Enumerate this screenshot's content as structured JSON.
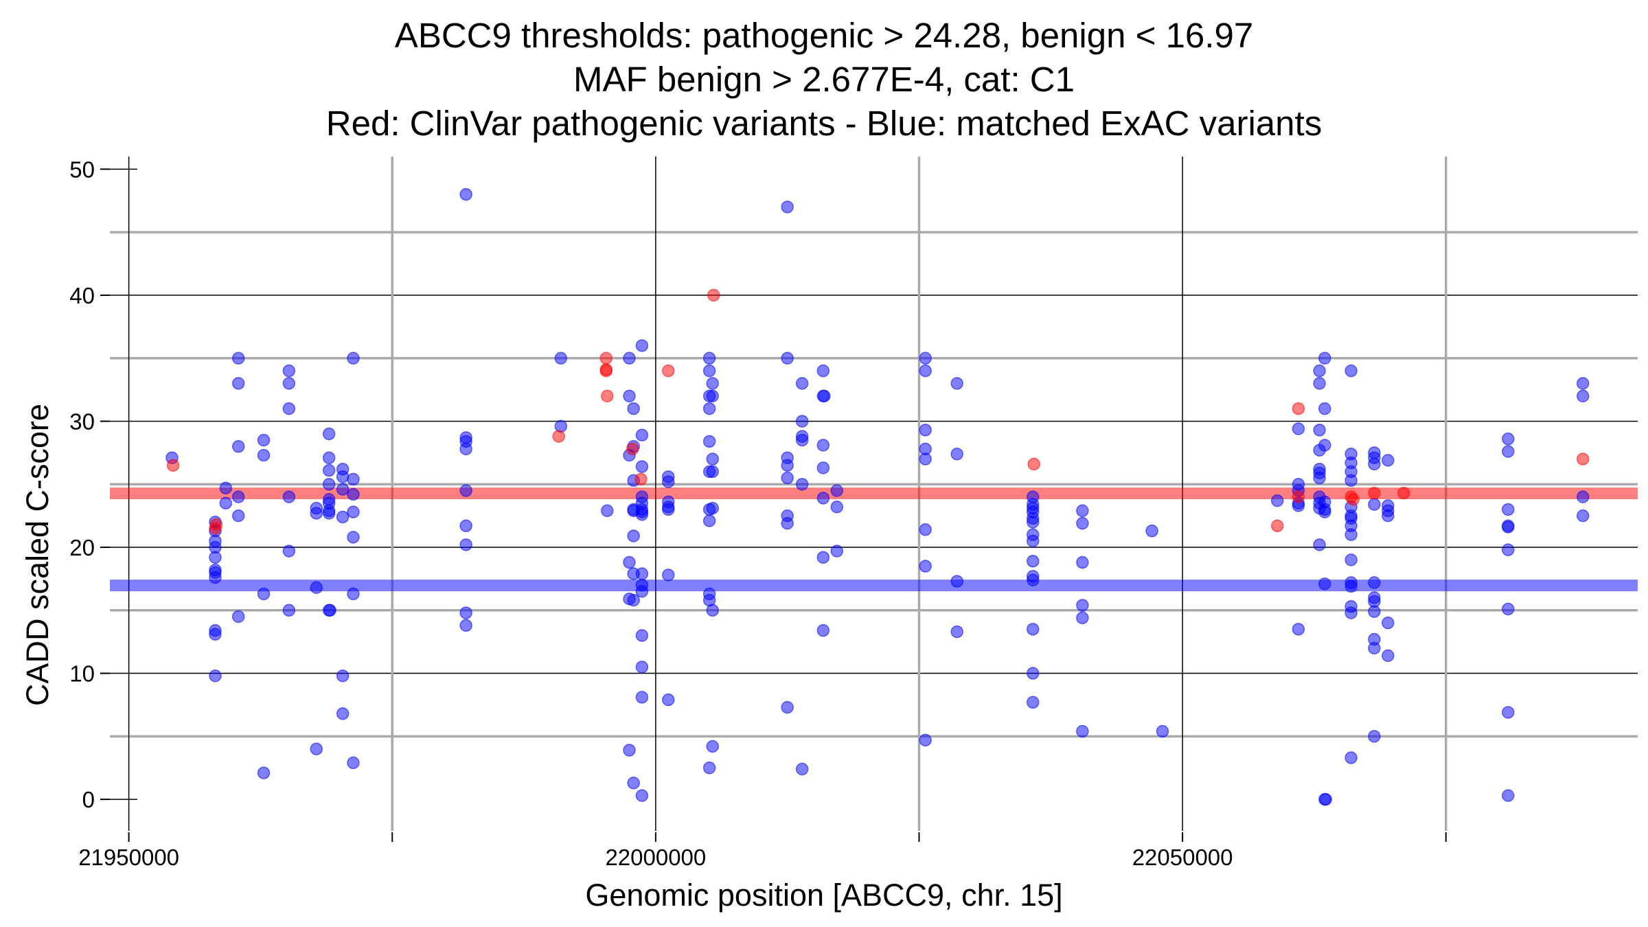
{
  "chart_data": {
    "type": "scatter",
    "title": "ABCC9 thresholds: pathogenic > 24.28, benign < 16.97",
    "subtitle": "MAF benign > 2.677E-4, cat: C1",
    "subtitle2": "Red: ClinVar pathogenic variants - Blue: matched ExAC variants",
    "xlabel": "Genomic position [ABCC9, chr. 15]",
    "ylabel": "CADD scaled C-score",
    "xlim": [
      21948200,
      22093200
    ],
    "ylim": [
      -2.5,
      51
    ],
    "xticks": [
      21950000,
      22000000,
      22050000
    ],
    "xtick_labels": [
      "21950000",
      "22000000",
      "22050000"
    ],
    "yticks": [
      0,
      10,
      20,
      30,
      40,
      50
    ],
    "ytick_labels": [
      "0",
      "10",
      "20",
      "30",
      "40",
      "50"
    ],
    "x_gridlines": [
      21950000,
      21975000,
      22000000,
      22025000,
      22050000,
      22075000
    ],
    "y_gridlines": [
      5,
      10,
      15,
      20,
      25,
      30,
      35,
      40,
      45
    ],
    "grid": true,
    "thresholds": [
      {
        "name": "pathogenic",
        "value": 24.28,
        "color": "#ff0000"
      },
      {
        "name": "benign",
        "value": 16.97,
        "color": "#0000ff"
      }
    ],
    "series": [
      {
        "name": "ClinVar pathogenic variants",
        "color": "#ff0000",
        "points": [
          [
            21954200,
            26.5
          ],
          [
            21958200,
            21.5
          ],
          [
            21958300,
            21.8
          ],
          [
            21990800,
            28.8
          ],
          [
            21995300,
            35.0
          ],
          [
            21995300,
            34.1
          ],
          [
            21995300,
            34.0
          ],
          [
            21995400,
            32.0
          ],
          [
            21997800,
            27.8
          ],
          [
            21998600,
            25.4
          ],
          [
            22001200,
            34.0
          ],
          [
            22005500,
            40.0
          ],
          [
            22035900,
            26.6
          ],
          [
            22059000,
            21.7
          ],
          [
            22061000,
            31.0
          ],
          [
            22061000,
            24.0
          ],
          [
            22066000,
            24.0
          ],
          [
            22066200,
            23.8
          ],
          [
            22068200,
            24.3
          ],
          [
            22071000,
            24.3
          ],
          [
            22088000,
            27.0
          ]
        ]
      },
      {
        "name": "matched ExAC variants",
        "color": "#0000ff",
        "points": [
          [
            21954100,
            27.1
          ],
          [
            21958200,
            22.0
          ],
          [
            21958200,
            21.3
          ],
          [
            21958200,
            20.5
          ],
          [
            21958200,
            20.0
          ],
          [
            21958200,
            19.2
          ],
          [
            21958200,
            18.2
          ],
          [
            21958200,
            18.0
          ],
          [
            21958200,
            17.6
          ],
          [
            21958200,
            13.4
          ],
          [
            21958200,
            13.1
          ],
          [
            21958200,
            9.8
          ],
          [
            21959200,
            24.7
          ],
          [
            21959200,
            23.5
          ],
          [
            21960400,
            35.0
          ],
          [
            21960400,
            33.0
          ],
          [
            21960400,
            28.0
          ],
          [
            21960400,
            24.0
          ],
          [
            21960400,
            22.5
          ],
          [
            21960400,
            14.5
          ],
          [
            21962800,
            28.5
          ],
          [
            21962800,
            27.3
          ],
          [
            21962800,
            16.3
          ],
          [
            21962800,
            2.1
          ],
          [
            21965200,
            34.0
          ],
          [
            21965200,
            33.0
          ],
          [
            21965200,
            31.0
          ],
          [
            21965200,
            24.0
          ],
          [
            21965200,
            19.7
          ],
          [
            21965200,
            15.0
          ],
          [
            21967800,
            23.1
          ],
          [
            21967800,
            22.7
          ],
          [
            21967800,
            16.8
          ],
          [
            21967800,
            4.0
          ],
          [
            21969000,
            29.0
          ],
          [
            21969000,
            27.1
          ],
          [
            21969000,
            26.1
          ],
          [
            21969000,
            25.0
          ],
          [
            21969000,
            23.8
          ],
          [
            21969000,
            23.5
          ],
          [
            21969000,
            22.9
          ],
          [
            21969000,
            22.7
          ],
          [
            21969000,
            15.0
          ],
          [
            21969100,
            15.0
          ],
          [
            21970300,
            26.2
          ],
          [
            21970300,
            25.6
          ],
          [
            21970300,
            24.6
          ],
          [
            21970300,
            22.4
          ],
          [
            21970300,
            9.8
          ],
          [
            21970300,
            6.8
          ],
          [
            21971300,
            35.0
          ],
          [
            21971300,
            25.4
          ],
          [
            21971300,
            24.2
          ],
          [
            21971300,
            22.8
          ],
          [
            21971300,
            20.8
          ],
          [
            21971300,
            16.3
          ],
          [
            21971300,
            2.9
          ],
          [
            21982000,
            48.0
          ],
          [
            21982000,
            28.7
          ],
          [
            21982000,
            28.4
          ],
          [
            21982000,
            27.8
          ],
          [
            21982000,
            24.5
          ],
          [
            21982000,
            21.7
          ],
          [
            21982000,
            20.2
          ],
          [
            21982000,
            14.8
          ],
          [
            21982000,
            13.8
          ],
          [
            21991000,
            35.0
          ],
          [
            21991000,
            29.6
          ],
          [
            21995400,
            22.9
          ],
          [
            21997500,
            35.0
          ],
          [
            21997500,
            32.0
          ],
          [
            21997500,
            27.3
          ],
          [
            21997500,
            18.8
          ],
          [
            21997500,
            15.9
          ],
          [
            21997500,
            3.9
          ],
          [
            21997900,
            31.0
          ],
          [
            21997900,
            28.0
          ],
          [
            21997900,
            25.3
          ],
          [
            21997900,
            23.0
          ],
          [
            21997900,
            22.9
          ],
          [
            21997900,
            20.9
          ],
          [
            21997900,
            17.9
          ],
          [
            21997900,
            15.8
          ],
          [
            21997900,
            1.3
          ],
          [
            21998700,
            36.0
          ],
          [
            21998700,
            28.9
          ],
          [
            21998700,
            26.4
          ],
          [
            21998700,
            24.0
          ],
          [
            21998700,
            23.5
          ],
          [
            21998700,
            23.0
          ],
          [
            21998700,
            22.8
          ],
          [
            21998700,
            22.6
          ],
          [
            21998700,
            17.9
          ],
          [
            21998700,
            17.0
          ],
          [
            21998700,
            16.5
          ],
          [
            21998700,
            13.0
          ],
          [
            21998700,
            10.5
          ],
          [
            21998700,
            8.1
          ],
          [
            21998700,
            0.3
          ],
          [
            22001200,
            25.6
          ],
          [
            22001200,
            25.2
          ],
          [
            22001200,
            23.6
          ],
          [
            22001200,
            23.2
          ],
          [
            22001200,
            23.0
          ],
          [
            22001200,
            17.8
          ],
          [
            22001200,
            7.9
          ],
          [
            22005100,
            35.0
          ],
          [
            22005100,
            34.0
          ],
          [
            22005100,
            32.0
          ],
          [
            22005100,
            31.0
          ],
          [
            22005100,
            28.4
          ],
          [
            22005100,
            26.0
          ],
          [
            22005100,
            23.0
          ],
          [
            22005100,
            22.1
          ],
          [
            22005100,
            16.3
          ],
          [
            22005100,
            15.8
          ],
          [
            22005100,
            2.5
          ],
          [
            22005400,
            33.0
          ],
          [
            22005400,
            32.0
          ],
          [
            22005400,
            27.0
          ],
          [
            22005400,
            26.0
          ],
          [
            22005400,
            23.1
          ],
          [
            22005400,
            15.0
          ],
          [
            22005400,
            4.2
          ],
          [
            22012500,
            47.0
          ],
          [
            22012500,
            35.0
          ],
          [
            22012500,
            27.1
          ],
          [
            22012500,
            26.5
          ],
          [
            22012500,
            25.5
          ],
          [
            22012500,
            22.5
          ],
          [
            22012500,
            21.9
          ],
          [
            22012500,
            7.3
          ],
          [
            22013900,
            33.0
          ],
          [
            22013900,
            30.0
          ],
          [
            22013900,
            28.8
          ],
          [
            22013900,
            28.5
          ],
          [
            22013900,
            25.0
          ],
          [
            22013900,
            2.4
          ],
          [
            22015900,
            34.0
          ],
          [
            22015900,
            32.0
          ],
          [
            22015900,
            28.1
          ],
          [
            22015900,
            26.3
          ],
          [
            22015900,
            23.9
          ],
          [
            22015900,
            19.2
          ],
          [
            22015900,
            13.4
          ],
          [
            22016000,
            32.0
          ],
          [
            22017200,
            24.5
          ],
          [
            22017200,
            23.2
          ],
          [
            22017200,
            19.7
          ],
          [
            22025600,
            35.0
          ],
          [
            22025600,
            34.0
          ],
          [
            22025600,
            29.3
          ],
          [
            22025600,
            27.8
          ],
          [
            22025600,
            27.0
          ],
          [
            22025600,
            21.4
          ],
          [
            22025600,
            18.5
          ],
          [
            22025600,
            4.7
          ],
          [
            22028600,
            33.0
          ],
          [
            22028600,
            27.4
          ],
          [
            22028600,
            17.3
          ],
          [
            22028600,
            13.3
          ],
          [
            22035800,
            24.0
          ],
          [
            22035800,
            23.4
          ],
          [
            22035800,
            23.1
          ],
          [
            22035800,
            22.8
          ],
          [
            22035800,
            22.3
          ],
          [
            22035800,
            22.0
          ],
          [
            22035800,
            21.0
          ],
          [
            22035800,
            20.5
          ],
          [
            22035800,
            18.9
          ],
          [
            22035800,
            17.7
          ],
          [
            22035800,
            17.4
          ],
          [
            22035800,
            13.5
          ],
          [
            22035800,
            10.0
          ],
          [
            22035800,
            7.7
          ],
          [
            22040500,
            22.9
          ],
          [
            22040500,
            21.9
          ],
          [
            22040500,
            18.8
          ],
          [
            22040500,
            15.4
          ],
          [
            22040500,
            14.4
          ],
          [
            22040500,
            5.4
          ],
          [
            22047100,
            21.3
          ],
          [
            22048100,
            5.4
          ],
          [
            22059000,
            23.7
          ],
          [
            22061000,
            29.4
          ],
          [
            22061000,
            25.0
          ],
          [
            22061000,
            24.5
          ],
          [
            22061000,
            23.5
          ],
          [
            22061000,
            23.3
          ],
          [
            22061000,
            13.5
          ],
          [
            22063000,
            34.0
          ],
          [
            22063000,
            33.0
          ],
          [
            22063000,
            29.3
          ],
          [
            22063000,
            27.7
          ],
          [
            22063000,
            26.2
          ],
          [
            22063000,
            25.9
          ],
          [
            22063000,
            25.5
          ],
          [
            22063000,
            24.0
          ],
          [
            22063000,
            23.5
          ],
          [
            22063000,
            23.1
          ],
          [
            22063000,
            20.2
          ],
          [
            22063500,
            35.0
          ],
          [
            22063500,
            31.0
          ],
          [
            22063500,
            28.1
          ],
          [
            22063500,
            23.6
          ],
          [
            22063500,
            23.0
          ],
          [
            22063500,
            22.8
          ],
          [
            22063500,
            17.1
          ],
          [
            22063500,
            0.0
          ],
          [
            22063600,
            0.0
          ],
          [
            22066000,
            34.0
          ],
          [
            22066000,
            27.4
          ],
          [
            22066000,
            26.7
          ],
          [
            22066000,
            26.0
          ],
          [
            22066000,
            25.3
          ],
          [
            22066000,
            23.2
          ],
          [
            22066000,
            22.5
          ],
          [
            22066000,
            22.3
          ],
          [
            22066000,
            21.7
          ],
          [
            22066000,
            21.0
          ],
          [
            22066000,
            19.0
          ],
          [
            22066000,
            17.2
          ],
          [
            22066000,
            16.9
          ],
          [
            22066000,
            15.3
          ],
          [
            22066000,
            14.8
          ],
          [
            22066000,
            3.3
          ],
          [
            22068200,
            27.5
          ],
          [
            22068200,
            27.1
          ],
          [
            22068200,
            26.6
          ],
          [
            22068200,
            23.4
          ],
          [
            22068200,
            17.2
          ],
          [
            22068200,
            16.0
          ],
          [
            22068200,
            15.7
          ],
          [
            22068200,
            14.9
          ],
          [
            22068200,
            12.7
          ],
          [
            22068200,
            12.0
          ],
          [
            22068200,
            5.0
          ],
          [
            22069500,
            26.9
          ],
          [
            22069500,
            23.3
          ],
          [
            22069500,
            22.9
          ],
          [
            22069500,
            22.5
          ],
          [
            22069500,
            14.0
          ],
          [
            22069500,
            11.4
          ],
          [
            22080900,
            28.6
          ],
          [
            22080900,
            27.6
          ],
          [
            22080900,
            23.0
          ],
          [
            22080900,
            21.7
          ],
          [
            22080900,
            21.6
          ],
          [
            22080900,
            19.8
          ],
          [
            22080900,
            15.1
          ],
          [
            22080900,
            6.9
          ],
          [
            22080900,
            0.3
          ],
          [
            22088000,
            33.0
          ],
          [
            22088000,
            32.0
          ],
          [
            22088000,
            24.0
          ],
          [
            22088000,
            22.5
          ]
        ]
      }
    ]
  }
}
